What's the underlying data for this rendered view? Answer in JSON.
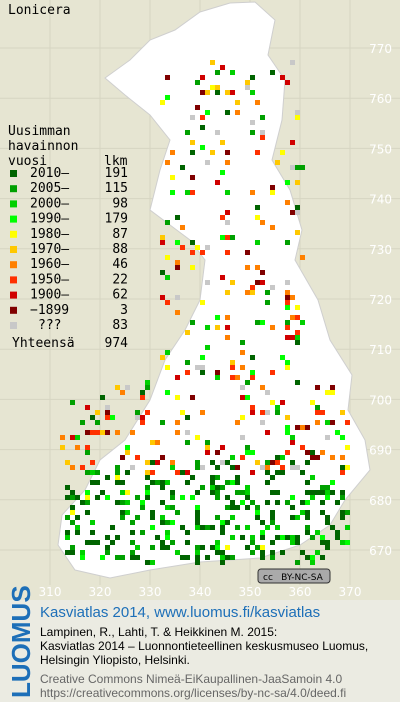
{
  "title": "Lonicera",
  "legend": {
    "header": [
      "Uusimman",
      "havainnon"
    ],
    "col_year": "vuosi",
    "col_count": "lkm",
    "rows": [
      {
        "label": "2010–",
        "count": 191,
        "color": "#006400"
      },
      {
        "label": "2005–",
        "count": 115,
        "color": "#00a000"
      },
      {
        "label": "2000–",
        "count": 98,
        "color": "#00d000"
      },
      {
        "label": "1990–",
        "count": 179,
        "color": "#00ff00"
      },
      {
        "label": "1980–",
        "count": 87,
        "color": "#ffff00"
      },
      {
        "label": "1970–",
        "count": 88,
        "color": "#ffc800"
      },
      {
        "label": "1960–",
        "count": 46,
        "color": "#ff8000"
      },
      {
        "label": "1950–",
        "count": 22,
        "color": "#ff3000"
      },
      {
        "label": "1900–",
        "count": 62,
        "color": "#d00000"
      },
      {
        "label": "−1899",
        "count": 3,
        "color": "#800000"
      },
      {
        "label": "???",
        "count": 83,
        "color": "#c8c8c8"
      }
    ],
    "total_label": "Yhteensä",
    "total": 974
  },
  "grid": {
    "y_labels": [
      770,
      760,
      750,
      740,
      730,
      720,
      710,
      700,
      690,
      680,
      670
    ],
    "x_labels": [
      310,
      320,
      330,
      340,
      350,
      360,
      370
    ]
  },
  "license_badge": {
    "cc": "cc",
    "terms": "BY-NC-SA"
  },
  "footer": {
    "logo": "LUOMUS",
    "headline": "Kasviatlas 2014, www.luomus.fi/kasviatlas",
    "citation": [
      "Lampinen, R., Lahti, T. & Heikkinen M. 2015:",
      "Kasviatlas 2014 – Luonnontieteellinen keskusmuseo Luomus,",
      "Helsingin Yliopisto, Helsinki."
    ],
    "license": [
      "Creative Commons Nimeä-EiKaupallinen-JaaSamoin 4.0",
      "https://creativecommons.org/licenses/by-nc-sa/4.0/deed.fi"
    ]
  }
}
